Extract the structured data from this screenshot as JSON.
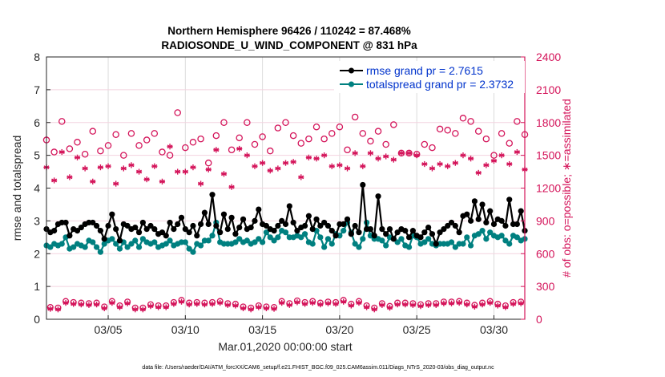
{
  "chart_data": {
    "type": "line",
    "title": [
      "Northern Hemisphere 96426 / 110242 = 87.468%",
      "RADIOSONDE_U_WIND_COMPONENT @ 831 hPa"
    ],
    "xlabel": "Mar.01,2020 00:00:00 start",
    "ylabel": "rmse and totalspread",
    "y2label": "# of obs: o=possible; ∗=assimilated",
    "footer": "data file: /Users/raeder/DAI/ATM_forcXX/CAM6_setup/f.e21.FHIST_BGC.f09_025.CAM6assim.011/Diags_NTrS_2020-03/obs_diag_output.nc",
    "xlim": [
      1,
      32
    ],
    "ylim": [
      0,
      8
    ],
    "y2lim": [
      0,
      2400
    ],
    "x_ticks": [
      {
        "value": 5,
        "label": "03/05"
      },
      {
        "value": 10,
        "label": "03/10"
      },
      {
        "value": 15,
        "label": "03/15"
      },
      {
        "value": 20,
        "label": "03/20"
      },
      {
        "value": 25,
        "label": "03/25"
      },
      {
        "value": 30,
        "label": "03/30"
      }
    ],
    "y_ticks": [
      0,
      1,
      2,
      3,
      4,
      5,
      6,
      7,
      8
    ],
    "y2_ticks": [
      0,
      300,
      600,
      900,
      1200,
      1500,
      1800,
      2100,
      2400
    ],
    "grid": true,
    "legend": {
      "placement": "top-right",
      "entries": [
        "rmse grand pr = 2.7615",
        "totalspread grand pr = 2.3732"
      ]
    },
    "x_start": 1.0,
    "x_step_days": 0.25,
    "series": [
      {
        "name": "rmse",
        "axis": "left",
        "color": "#000000",
        "values": [
          2.75,
          2.65,
          2.7,
          2.9,
          2.95,
          2.95,
          2.55,
          2.75,
          2.7,
          2.8,
          2.9,
          2.95,
          2.95,
          2.85,
          2.7,
          2.45,
          2.85,
          3.2,
          2.75,
          2.4,
          2.9,
          2.85,
          2.75,
          2.8,
          2.65,
          2.95,
          2.75,
          2.85,
          2.75,
          2.6,
          2.65,
          2.55,
          2.95,
          2.75,
          2.9,
          3.1,
          2.75,
          2.65,
          2.85,
          2.55,
          2.9,
          3.25,
          2.9,
          3.8,
          2.85,
          2.65,
          3.2,
          2.75,
          3.1,
          2.6,
          2.8,
          3.05,
          2.75,
          2.8,
          3.0,
          3.35,
          2.9,
          2.85,
          2.75,
          2.7,
          2.85,
          3.0,
          2.9,
          3.45,
          2.95,
          2.7,
          2.8,
          2.85,
          3.15,
          2.75,
          3.05,
          2.85,
          2.95,
          2.85,
          2.7,
          2.55,
          2.9,
          2.9,
          3.05,
          2.6,
          2.85,
          2.65,
          4.1,
          2.75,
          2.75,
          2.55,
          3.75,
          2.75,
          2.6,
          2.75,
          2.45,
          2.65,
          2.75,
          2.7,
          2.5,
          2.7,
          2.55,
          2.5,
          2.65,
          2.8,
          2.6,
          2.3,
          2.65,
          2.75,
          2.85,
          2.95,
          2.85,
          2.65,
          3.15,
          3.2,
          3.0,
          3.6,
          3.05,
          3.5,
          2.95,
          3.3,
          2.9,
          3.05,
          3.0,
          2.85,
          3.65,
          2.9,
          2.9,
          3.3,
          2.7,
          2.65,
          2.65,
          2.55,
          2.4,
          3.5
        ]
      },
      {
        "name": "totalspread",
        "axis": "left",
        "color": "#008080",
        "values": [
          2.25,
          2.2,
          2.3,
          2.25,
          2.3,
          2.5,
          2.15,
          2.2,
          2.3,
          2.25,
          2.2,
          2.4,
          2.35,
          2.2,
          2.05,
          2.3,
          2.4,
          2.45,
          2.3,
          2.15,
          2.35,
          2.2,
          2.3,
          2.4,
          2.2,
          2.45,
          2.35,
          2.3,
          2.35,
          2.2,
          2.25,
          2.3,
          2.4,
          2.25,
          2.3,
          2.35,
          2.35,
          2.15,
          2.05,
          2.3,
          2.25,
          2.4,
          2.4,
          2.55,
          2.95,
          2.35,
          2.3,
          2.3,
          2.3,
          2.35,
          2.45,
          2.35,
          2.4,
          2.3,
          2.35,
          2.45,
          2.35,
          2.65,
          2.5,
          2.4,
          2.5,
          2.7,
          2.65,
          2.5,
          2.5,
          2.55,
          2.5,
          2.6,
          2.35,
          2.3,
          2.7,
          2.5,
          2.2,
          2.45,
          2.3,
          2.6,
          2.55,
          2.7,
          2.95,
          2.65,
          2.3,
          2.2,
          2.45,
          2.95,
          2.55,
          2.45,
          2.45,
          2.4,
          2.25,
          2.5,
          2.45,
          2.35,
          2.45,
          2.25,
          2.2,
          2.55,
          2.5,
          2.3,
          2.35,
          2.45,
          2.3,
          2.25,
          2.3,
          2.3,
          2.3,
          2.35,
          2.2,
          2.3,
          2.3,
          2.5,
          2.25,
          2.55,
          2.6,
          2.7,
          2.45,
          2.65,
          2.55,
          2.5,
          2.55,
          2.4,
          2.3,
          2.55,
          2.5,
          2.4,
          2.45,
          2.3,
          2.25,
          2.35,
          2.3,
          2.35
        ]
      }
    ],
    "obs_possible_12h": {
      "axis": "right",
      "color": "#d4145a",
      "marker": "circle",
      "x_start": 1.0,
      "x_step_days": 0.5,
      "values": [
        1640,
        1530,
        1810,
        1560,
        1620,
        1510,
        1720,
        1540,
        1590,
        1690,
        1500,
        1700,
        1590,
        1640,
        1700,
        1530,
        1500,
        1890,
        1570,
        1620,
        1650,
        1430,
        1680,
        1800,
        1550,
        1660,
        1800,
        1600,
        1670,
        1540,
        1750,
        1800,
        1680,
        1610,
        1650,
        1760,
        1650,
        1700,
        1760,
        1550,
        1850,
        1700,
        1630,
        1720,
        1600,
        1780,
        1520,
        1520,
        1510,
        1600,
        1570,
        1740,
        1730,
        1700,
        1840,
        1810,
        1720,
        1650,
        1500,
        1700,
        1610,
        1810,
        1690,
        1620,
        1700,
        1660,
        1760,
        1750,
        1780,
        1600,
        1570,
        1620,
        1710,
        1750,
        1840,
        1700,
        1480,
        1640,
        1700,
        1550,
        1780,
        1640,
        1720,
        1510,
        1560,
        1600,
        1710,
        1760,
        1540,
        1520,
        1780,
        1600,
        1730,
        1750,
        1900,
        1660,
        1550,
        1500,
        1700,
        1690,
        1750,
        1560,
        1810,
        1700,
        1660,
        1580,
        1820,
        1560,
        1610,
        1630,
        1610,
        1660,
        1530,
        1690,
        1740,
        1620,
        1520,
        1700,
        1590,
        1580,
        1630,
        1620,
        1540,
        1710
      ]
    },
    "obs_assim_12h": {
      "axis": "right",
      "color": "#d4145a",
      "marker": "asterisk",
      "x_start": 1.0,
      "x_step_days": 0.5,
      "values": [
        1390,
        1270,
        1530,
        1300,
        1480,
        1380,
        1260,
        1390,
        1400,
        1240,
        1380,
        1410,
        1350,
        1280,
        1400,
        1260,
        1580,
        1350,
        1350,
        1390,
        1240,
        1370,
        1550,
        1330,
        1210,
        1560,
        1500,
        1400,
        1430,
        1360,
        1380,
        1430,
        1440,
        1300,
        1480,
        1470,
        1500,
        1400,
        1410,
        1380,
        1520,
        1400,
        1520,
        1470,
        1490,
        1460,
        1520,
        1520,
        1500,
        1420,
        1380,
        1420,
        1400,
        1430,
        1500,
        1470,
        1340,
        1410,
        1450,
        1500,
        1420,
        1530,
        1370,
        1350,
        1520,
        1380,
        1510,
        1530,
        1400,
        1360,
        1450,
        1490,
        1480,
        1450,
        1390,
        1440,
        1280,
        1350,
        1300,
        1490,
        1470,
        1390,
        1420,
        1440,
        1440,
        1370,
        1460,
        1270,
        1380,
        1420,
        1510,
        1390,
        1500,
        1450,
        1410,
        1430,
        1550,
        1420,
        1360,
        1460,
        1330,
        1520,
        1480,
        1540,
        1400,
        1400,
        1490,
        1300,
        1350,
        1450,
        1380,
        1400,
        1410,
        1600,
        1540,
        1380,
        1460,
        1420,
        1550,
        1450,
        1530,
        1490,
        1380,
        1370
      ]
    },
    "obs_low_6h": {
      "axis": "right",
      "color": "#d4145a",
      "marker": "both",
      "x_start": 1.25,
      "x_step_days": 0.5,
      "values": [
        95,
        90,
        150,
        140,
        135,
        130,
        135,
        100,
        150,
        110,
        145,
        90,
        90,
        120,
        110,
        110,
        140,
        160,
        135,
        140,
        135,
        140,
        150,
        130,
        125,
        100,
        90,
        110,
        100,
        95,
        150,
        130,
        155,
        140,
        150,
        135,
        145,
        140,
        160,
        125,
        150,
        110,
        90,
        130,
        105,
        135,
        135,
        130,
        120,
        130,
        130,
        145,
        145,
        150,
        135,
        115,
        135,
        150,
        125,
        110,
        140,
        145,
        140,
        130,
        130,
        115,
        135,
        140,
        145,
        20
      ]
    }
  }
}
